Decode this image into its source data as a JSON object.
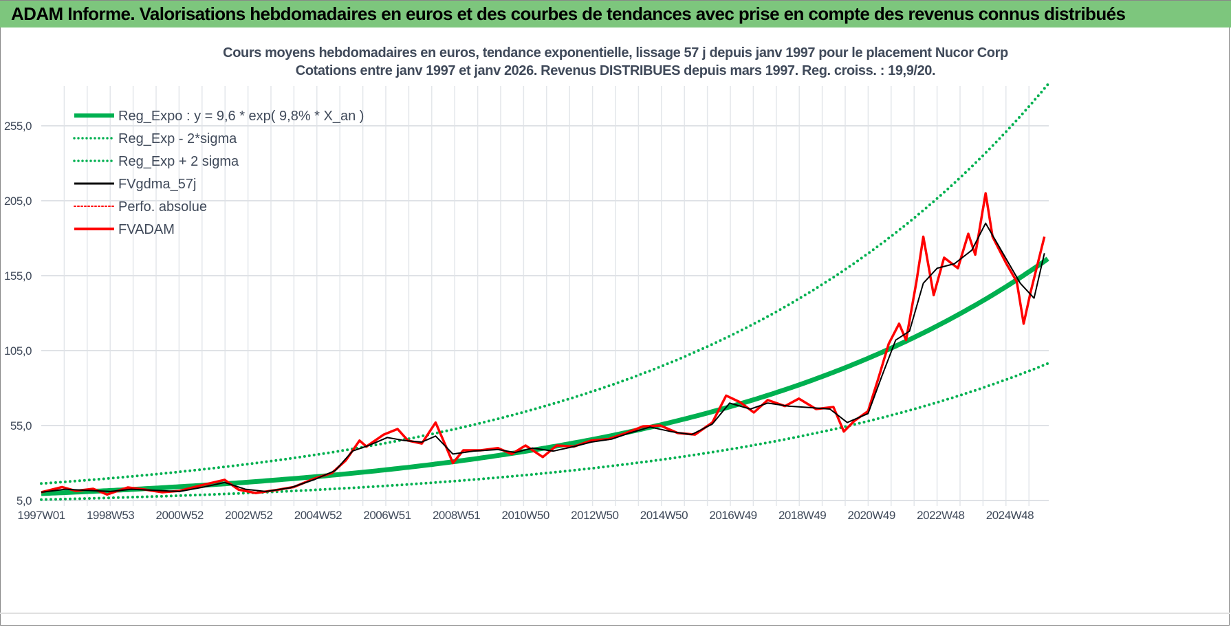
{
  "header": {
    "title": "ADAM Informe. Valorisations hebdomadaires en euros et des courbes de tendances avec prise en compte des revenus connus distribués"
  },
  "chart_data": {
    "type": "line",
    "title": "Cours moyens hebdomadaires en euros, tendance exponentielle, lissage 57 j depuis janv 1997 pour le placement Nucor Corp",
    "subtitle": "Cotations entre janv 1997 et janv 2026. Revenus DISTRIBUES depuis mars 1997. Reg. croiss. : 19,9/20.",
    "xlabel": "",
    "ylabel": "",
    "x_range": [
      1997.0,
      2026.1
    ],
    "ylim": [
      5,
      290
    ],
    "y_ticks": [
      "5,0",
      "55,0",
      "105,0",
      "155,0",
      "205,0",
      "255,0"
    ],
    "y_tick_values": [
      5,
      55,
      105,
      155,
      205,
      255
    ],
    "x_tick_labels": [
      "1997W01",
      "1998W53",
      "2000W52",
      "2002W52",
      "2004W52",
      "2006W51",
      "2008W51",
      "2010W50",
      "2012W50",
      "2014W50",
      "2016W49",
      "2018W49",
      "2020W49",
      "2022W48",
      "2024W48"
    ],
    "x_tick_years": [
      1997.0,
      1999.0,
      2001.0,
      2003.0,
      2005.0,
      2007.0,
      2009.0,
      2011.0,
      2013.0,
      2015.0,
      2017.0,
      2019.0,
      2021.0,
      2023.0,
      2025.0
    ],
    "grid": {
      "vertical": true,
      "horizontal": true
    },
    "legend_position": "top-left",
    "regression": {
      "a": 9.6,
      "rate": 0.098,
      "lower_factor": 0.58,
      "upper_factor": 1.7
    },
    "series": [
      {
        "name": "Reg_Expo : y = 9,6 * exp( 9,8% *  X_an )",
        "style": "thick-solid",
        "color": "#00b050"
      },
      {
        "name": "Reg_Exp - 2*sigma",
        "style": "dotted",
        "color": "#00b050"
      },
      {
        "name": "Reg_Exp + 2 sigma",
        "style": "dotted",
        "color": "#00b050"
      },
      {
        "name": "FVgdma_57j",
        "style": "solid",
        "color": "#000000",
        "x": [
          1997.0,
          1997.7,
          1998.3,
          1999.0,
          1999.6,
          2000.3,
          2001.0,
          2001.7,
          2002.3,
          2002.9,
          2003.5,
          2004.2,
          2004.9,
          2005.5,
          2006.0,
          2006.5,
          2007.0,
          2007.5,
          2008.0,
          2008.4,
          2008.9,
          2009.5,
          2010.2,
          2010.7,
          2011.2,
          2011.8,
          2012.4,
          2012.9,
          2013.5,
          2014.0,
          2014.6,
          2015.2,
          2015.8,
          2016.4,
          2016.9,
          2017.5,
          2018.0,
          2018.6,
          2019.2,
          2019.8,
          2020.3,
          2020.9,
          2021.3,
          2021.7,
          2022.1,
          2022.5,
          2022.9,
          2023.4,
          2023.9,
          2024.3,
          2024.8,
          2025.3,
          2025.7,
          2026.0
        ],
        "y": [
          10.5,
          12.5,
          11.8,
          11,
          12.5,
          11.8,
          11,
          14,
          17,
          12.5,
          11,
          13.5,
          19,
          25,
          38,
          42,
          47,
          45,
          44,
          48,
          36,
          38,
          39,
          37,
          40,
          38,
          41,
          44,
          46,
          50,
          54,
          51,
          49,
          56,
          70,
          66,
          70,
          68,
          67,
          66,
          57,
          63,
          88,
          112,
          118,
          150,
          160,
          163,
          172,
          190,
          170,
          150,
          140,
          170
        ]
      },
      {
        "name": "Perfo. absolue",
        "style": "dotted",
        "color": "#ff0000"
      },
      {
        "name": "FVADAM",
        "style": "thick-solid",
        "color": "#ff0000",
        "x": [
          1997.0,
          1997.6,
          1998.0,
          1998.5,
          1998.9,
          1999.5,
          2000.0,
          2000.5,
          2001.0,
          2001.6,
          2002.3,
          2002.7,
          2003.2,
          2003.8,
          2004.3,
          2004.9,
          2005.4,
          2005.8,
          2006.2,
          2006.4,
          2006.9,
          2007.3,
          2007.6,
          2008.0,
          2008.4,
          2008.7,
          2008.9,
          2009.2,
          2009.7,
          2010.2,
          2010.6,
          2011.0,
          2011.5,
          2011.9,
          2012.4,
          2012.9,
          2013.4,
          2013.9,
          2014.4,
          2014.9,
          2015.4,
          2015.9,
          2016.4,
          2016.8,
          2017.2,
          2017.6,
          2018.0,
          2018.5,
          2018.9,
          2019.4,
          2019.9,
          2020.2,
          2020.5,
          2020.9,
          2021.2,
          2021.5,
          2021.8,
          2022.0,
          2022.3,
          2022.5,
          2022.8,
          2023.1,
          2023.5,
          2023.8,
          2024.0,
          2024.3,
          2024.5,
          2024.9,
          2025.2,
          2025.4,
          2025.6,
          2026.0
        ],
        "y": [
          10.5,
          14,
          11.4,
          12.8,
          9,
          13.7,
          12.3,
          10.5,
          11.4,
          15,
          18.8,
          12.3,
          10,
          12,
          14,
          19.7,
          23.3,
          31.6,
          45,
          41,
          49,
          52.7,
          45,
          43,
          57,
          41,
          30,
          38.5,
          38.5,
          40,
          36,
          41.7,
          34,
          41.7,
          41,
          45,
          46,
          50,
          54.5,
          55,
          50,
          49,
          57,
          75,
          70.6,
          63.7,
          72,
          68,
          73,
          66,
          67.4,
          51,
          58,
          64.6,
          86.6,
          109.6,
          123,
          112,
          151,
          181,
          142,
          167,
          160,
          183,
          169,
          210,
          181,
          163,
          151,
          123,
          144,
          181
        ]
      }
    ]
  }
}
